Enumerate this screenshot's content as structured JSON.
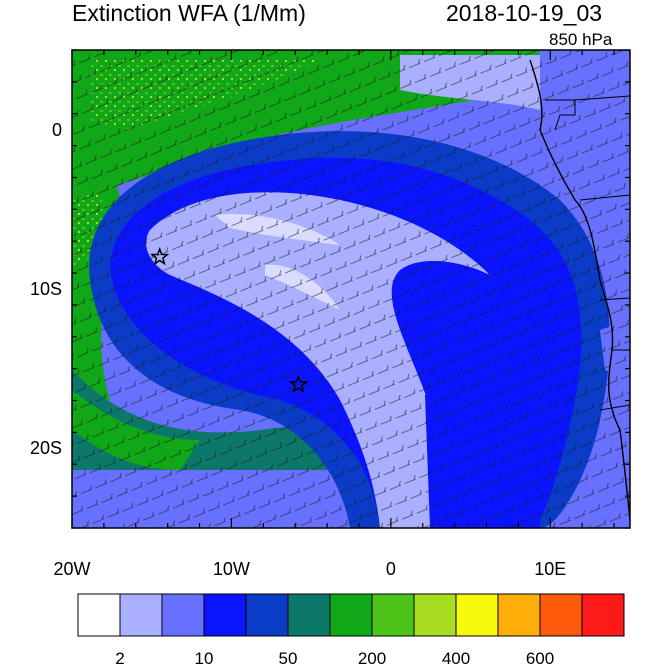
{
  "header": {
    "title": "Extinction WFA (1/Mm)",
    "datetime": "2018-10-19_03",
    "level": "850 hPa"
  },
  "map": {
    "lon_range": [
      -20,
      15
    ],
    "lat_range": [
      -25,
      5
    ],
    "x_ticks": [
      {
        "label": "20W",
        "value": -20
      },
      {
        "label": "10W",
        "value": -10
      },
      {
        "label": "0",
        "value": 0
      },
      {
        "label": "10E",
        "value": 10
      }
    ],
    "y_ticks": [
      {
        "label": "0",
        "value": 0
      },
      {
        "label": "10S",
        "value": -10
      },
      {
        "label": "20S",
        "value": -20
      }
    ],
    "markers": [
      {
        "name": "star",
        "lon": -14.5,
        "lat": -8.0
      },
      {
        "name": "star",
        "lon": -5.8,
        "lat": -16.0
      }
    ]
  },
  "colorbar": {
    "colors": [
      "#ffffff",
      "#aab0ff",
      "#6870ff",
      "#0a14ff",
      "#0a3cc8",
      "#0b786a",
      "#10a818",
      "#4ec41a",
      "#a8dc1e",
      "#f8f80a",
      "#ffae0a",
      "#ff5a0a",
      "#ff1a1a"
    ],
    "labels": [
      {
        "text": "2",
        "boundary": 1
      },
      {
        "text": "10",
        "boundary": 3
      },
      {
        "text": "50",
        "boundary": 5
      },
      {
        "text": "200",
        "boundary": 7
      },
      {
        "text": "400",
        "boundary": 9
      },
      {
        "text": "600",
        "boundary": 11
      }
    ]
  }
}
